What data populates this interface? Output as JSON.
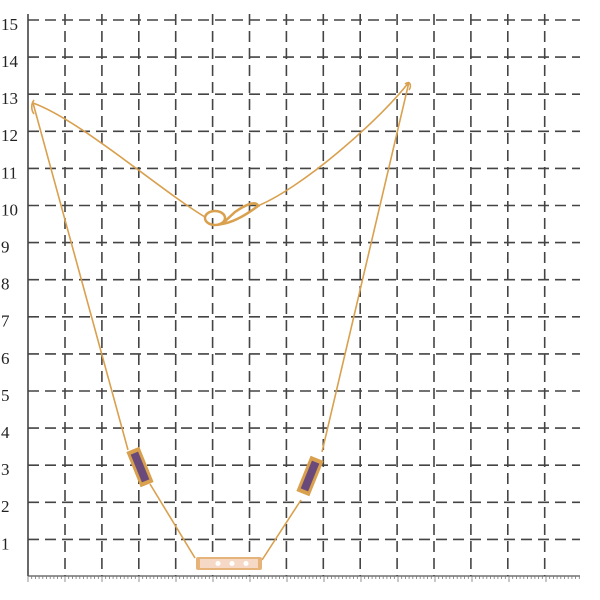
{
  "ruler": {
    "labels": [
      1,
      2,
      3,
      4,
      5,
      6,
      7,
      8,
      9,
      10,
      11,
      12,
      13,
      14,
      15
    ]
  }
}
